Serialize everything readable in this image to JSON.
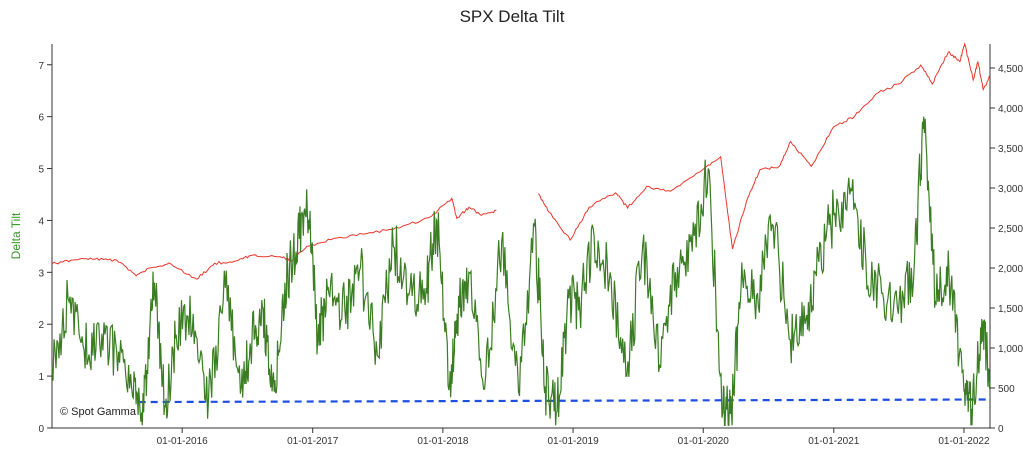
{
  "chart_data": {
    "type": "line",
    "title": "SPX Delta Tilt",
    "ylabel": "Delta Tilt",
    "y2label": "",
    "watermark": "© Spot Gamma",
    "ylim": [
      0,
      7.4
    ],
    "y2lim": [
      0,
      4800
    ],
    "xlim": [
      "2015-01-01",
      "2022-03-15"
    ],
    "yticks": [
      0,
      1,
      2,
      3,
      4,
      5,
      6,
      7
    ],
    "y2ticks": [
      0,
      500,
      1000,
      1500,
      2000,
      2500,
      3000,
      3500,
      4000,
      4500
    ],
    "y2tick_labels": [
      "0",
      "500",
      "1,000",
      "1,500",
      "2,000",
      "2,500",
      "3,000",
      "3,500",
      "4,000",
      "4,500"
    ],
    "xticks": [
      "2016-01-01",
      "2017-01-01",
      "2018-01-01",
      "2019-01-01",
      "2020-01-01",
      "2021-01-01",
      "2022-01-01"
    ],
    "xtick_labels": [
      "01-01-2016",
      "01-01-2017",
      "01-01-2018",
      "01-01-2019",
      "01-01-2020",
      "01-01-2021",
      "01-01-2022"
    ],
    "grid": false,
    "colors": {
      "delta": "#3a7d22",
      "spx": "#e8372c",
      "threshold": "#1f4fe0",
      "axis": "#333333",
      "ylabel": "#3a9a2a"
    },
    "series": [
      {
        "key": "delta",
        "axis": "left",
        "color": "#3a7d22",
        "x": [
          "2015-01-01",
          "2015-02-15",
          "2015-04-01",
          "2015-05-15",
          "2015-07-01",
          "2015-08-15",
          "2015-09-15",
          "2015-10-15",
          "2015-11-15",
          "2015-12-15",
          "2016-02-01",
          "2016-03-15",
          "2016-05-01",
          "2016-06-15",
          "2016-07-15",
          "2016-08-15",
          "2016-09-15",
          "2016-10-15",
          "2016-11-15",
          "2016-12-15",
          "2017-01-15",
          "2017-02-15",
          "2017-04-01",
          "2017-05-15",
          "2017-07-01",
          "2017-08-15",
          "2017-10-01",
          "2017-11-15",
          "2017-12-15",
          "2018-01-20",
          "2018-02-10",
          "2018-03-15",
          "2018-05-01",
          "2018-06-15",
          "2018-08-01",
          "2018-09-15",
          "2018-10-15",
          "2018-11-15",
          "2018-12-20",
          "2019-01-20",
          "2019-03-01",
          "2019-04-15",
          "2019-06-01",
          "2019-07-15",
          "2019-09-01",
          "2019-10-15",
          "2019-12-01",
          "2020-01-15",
          "2020-02-25",
          "2020-03-20",
          "2020-04-20",
          "2020-06-01",
          "2020-07-15",
          "2020-09-01",
          "2020-10-15",
          "2020-11-20",
          "2021-01-01",
          "2021-02-15",
          "2021-04-01",
          "2021-05-15",
          "2021-07-01",
          "2021-08-15",
          "2021-09-10",
          "2021-10-15",
          "2021-11-20",
          "2022-01-01",
          "2022-01-25",
          "2022-02-20",
          "2022-03-15"
        ],
        "values": [
          1.2,
          2.5,
          1.5,
          1.6,
          1.5,
          0.6,
          0.3,
          2.8,
          0.4,
          1.8,
          2.2,
          0.6,
          2.7,
          0.8,
          1.8,
          2.3,
          0.7,
          2.8,
          3.4,
          4.6,
          1.7,
          2.6,
          2.3,
          3.1,
          1.4,
          3.5,
          2.7,
          2.7,
          4.0,
          0.9,
          2.2,
          3.0,
          1.0,
          3.6,
          0.7,
          3.9,
          0.8,
          0.3,
          2.5,
          2.3,
          3.7,
          3.0,
          1.0,
          3.5,
          1.2,
          3.0,
          3.4,
          5.0,
          0.3,
          0.3,
          2.9,
          2.6,
          3.9,
          1.7,
          2.1,
          3.2,
          4.1,
          4.5,
          3.2,
          2.6,
          2.2,
          3.2,
          6.0,
          2.4,
          3.0,
          0.7,
          0.4,
          2.1,
          0.9
        ]
      },
      {
        "key": "spx",
        "axis": "right",
        "color": "#e8372c",
        "x": [
          "2015-01-01",
          "2015-03-01",
          "2015-05-01",
          "2015-07-01",
          "2015-08-25",
          "2015-10-01",
          "2015-12-01",
          "2016-02-11",
          "2016-04-01",
          "2016-06-01",
          "2016-07-15",
          "2016-10-01",
          "2016-11-04",
          "2016-12-15",
          "2017-03-01",
          "2017-06-01",
          "2017-09-01",
          "2017-12-01",
          "2018-01-26",
          "2018-02-09",
          "2018-03-15",
          "2018-04-20",
          "2018-05-31",
          null,
          "2018-09-25",
          "2018-10-25",
          "2018-12-24",
          "2019-02-15",
          "2019-04-30",
          "2019-06-03",
          "2019-07-26",
          "2019-10-01",
          "2019-12-31",
          "2020-02-19",
          "2020-03-23",
          "2020-05-01",
          "2020-06-08",
          "2020-08-01",
          "2020-09-02",
          "2020-10-30",
          "2020-12-31",
          "2021-03-01",
          "2021-05-01",
          "2021-07-01",
          "2021-09-02",
          "2021-10-04",
          "2021-11-18",
          "2021-12-20",
          "2022-01-03",
          "2022-01-27",
          "2022-02-09",
          "2022-02-24",
          "2022-03-15"
        ],
        "values": [
          2050,
          2100,
          2110,
          2100,
          1900,
          2000,
          2050,
          1860,
          2060,
          2090,
          2160,
          2140,
          2090,
          2270,
          2370,
          2430,
          2500,
          2650,
          2870,
          2620,
          2760,
          2660,
          2720,
          null,
          2930,
          2700,
          2350,
          2760,
          2940,
          2750,
          3020,
          2960,
          3230,
          3390,
          2237,
          2830,
          3230,
          3270,
          3580,
          3270,
          3760,
          3900,
          4180,
          4300,
          4536,
          4300,
          4700,
          4580,
          4800,
          4350,
          4580,
          4230,
          4400
        ]
      }
    ],
    "threshold": {
      "label": "",
      "values": [
        0.5,
        0.55
      ]
    }
  }
}
